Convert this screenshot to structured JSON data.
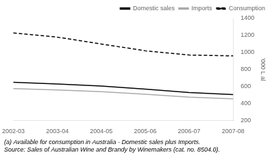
{
  "chart_data": {
    "type": "line",
    "ylabel": "'000 L al",
    "categories": [
      "2002-03",
      "2003-04",
      "2004-05",
      "2005-06",
      "2006-07",
      "2007-08"
    ],
    "series": [
      {
        "name": "Domestic sales",
        "color": "#000000",
        "line_style": "solid",
        "values": [
          650,
          630,
          605,
          570,
          530,
          505
        ]
      },
      {
        "name": "Imports",
        "color": "#aaaaaa",
        "line_style": "solid",
        "values": [
          575,
          560,
          540,
          510,
          475,
          455
        ]
      },
      {
        "name": "Consumption",
        "color": "#000000",
        "line_style": "dashed",
        "values": [
          1230,
          1180,
          1100,
          1020,
          970,
          960
        ]
      }
    ],
    "ylim": [
      200,
      1400
    ],
    "yticks": [
      200,
      400,
      600,
      800,
      1000,
      1200,
      1400
    ],
    "annotations": [
      "(a) Available for consumption in Australia - Domestic sales plus Imports.",
      "Source: Sales of Australian Wine and Brandy by Winemakers (cat. no. 8504.0)."
    ],
    "grid": false,
    "legend": "upper right"
  }
}
